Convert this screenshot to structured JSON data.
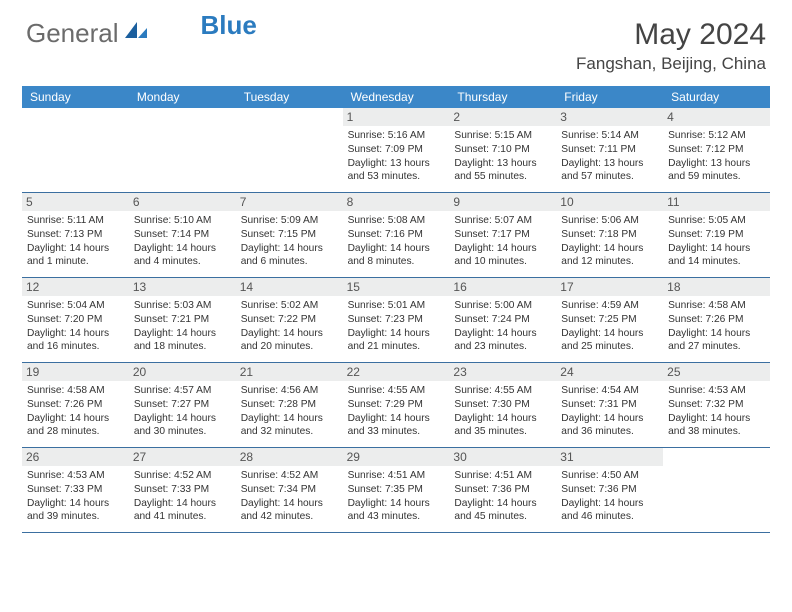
{
  "brand": {
    "part1": "General",
    "part2": "Blue"
  },
  "title": "May 2024",
  "location": "Fangshan, Beijing, China",
  "colors": {
    "header_bg": "#3b87c8",
    "row_border": "#3b6fa0",
    "daynum_bg": "#eceded",
    "logo_gray": "#6b6b6b",
    "logo_blue": "#2b7bbf"
  },
  "days_of_week": [
    "Sunday",
    "Monday",
    "Tuesday",
    "Wednesday",
    "Thursday",
    "Friday",
    "Saturday"
  ],
  "weeks": [
    [
      null,
      null,
      null,
      {
        "n": "1",
        "sr": "5:16 AM",
        "ss": "7:09 PM",
        "dl": "13 hours and 53 minutes."
      },
      {
        "n": "2",
        "sr": "5:15 AM",
        "ss": "7:10 PM",
        "dl": "13 hours and 55 minutes."
      },
      {
        "n": "3",
        "sr": "5:14 AM",
        "ss": "7:11 PM",
        "dl": "13 hours and 57 minutes."
      },
      {
        "n": "4",
        "sr": "5:12 AM",
        "ss": "7:12 PM",
        "dl": "13 hours and 59 minutes."
      }
    ],
    [
      {
        "n": "5",
        "sr": "5:11 AM",
        "ss": "7:13 PM",
        "dl": "14 hours and 1 minute."
      },
      {
        "n": "6",
        "sr": "5:10 AM",
        "ss": "7:14 PM",
        "dl": "14 hours and 4 minutes."
      },
      {
        "n": "7",
        "sr": "5:09 AM",
        "ss": "7:15 PM",
        "dl": "14 hours and 6 minutes."
      },
      {
        "n": "8",
        "sr": "5:08 AM",
        "ss": "7:16 PM",
        "dl": "14 hours and 8 minutes."
      },
      {
        "n": "9",
        "sr": "5:07 AM",
        "ss": "7:17 PM",
        "dl": "14 hours and 10 minutes."
      },
      {
        "n": "10",
        "sr": "5:06 AM",
        "ss": "7:18 PM",
        "dl": "14 hours and 12 minutes."
      },
      {
        "n": "11",
        "sr": "5:05 AM",
        "ss": "7:19 PM",
        "dl": "14 hours and 14 minutes."
      }
    ],
    [
      {
        "n": "12",
        "sr": "5:04 AM",
        "ss": "7:20 PM",
        "dl": "14 hours and 16 minutes."
      },
      {
        "n": "13",
        "sr": "5:03 AM",
        "ss": "7:21 PM",
        "dl": "14 hours and 18 minutes."
      },
      {
        "n": "14",
        "sr": "5:02 AM",
        "ss": "7:22 PM",
        "dl": "14 hours and 20 minutes."
      },
      {
        "n": "15",
        "sr": "5:01 AM",
        "ss": "7:23 PM",
        "dl": "14 hours and 21 minutes."
      },
      {
        "n": "16",
        "sr": "5:00 AM",
        "ss": "7:24 PM",
        "dl": "14 hours and 23 minutes."
      },
      {
        "n": "17",
        "sr": "4:59 AM",
        "ss": "7:25 PM",
        "dl": "14 hours and 25 minutes."
      },
      {
        "n": "18",
        "sr": "4:58 AM",
        "ss": "7:26 PM",
        "dl": "14 hours and 27 minutes."
      }
    ],
    [
      {
        "n": "19",
        "sr": "4:58 AM",
        "ss": "7:26 PM",
        "dl": "14 hours and 28 minutes."
      },
      {
        "n": "20",
        "sr": "4:57 AM",
        "ss": "7:27 PM",
        "dl": "14 hours and 30 minutes."
      },
      {
        "n": "21",
        "sr": "4:56 AM",
        "ss": "7:28 PM",
        "dl": "14 hours and 32 minutes."
      },
      {
        "n": "22",
        "sr": "4:55 AM",
        "ss": "7:29 PM",
        "dl": "14 hours and 33 minutes."
      },
      {
        "n": "23",
        "sr": "4:55 AM",
        "ss": "7:30 PM",
        "dl": "14 hours and 35 minutes."
      },
      {
        "n": "24",
        "sr": "4:54 AM",
        "ss": "7:31 PM",
        "dl": "14 hours and 36 minutes."
      },
      {
        "n": "25",
        "sr": "4:53 AM",
        "ss": "7:32 PM",
        "dl": "14 hours and 38 minutes."
      }
    ],
    [
      {
        "n": "26",
        "sr": "4:53 AM",
        "ss": "7:33 PM",
        "dl": "14 hours and 39 minutes."
      },
      {
        "n": "27",
        "sr": "4:52 AM",
        "ss": "7:33 PM",
        "dl": "14 hours and 41 minutes."
      },
      {
        "n": "28",
        "sr": "4:52 AM",
        "ss": "7:34 PM",
        "dl": "14 hours and 42 minutes."
      },
      {
        "n": "29",
        "sr": "4:51 AM",
        "ss": "7:35 PM",
        "dl": "14 hours and 43 minutes."
      },
      {
        "n": "30",
        "sr": "4:51 AM",
        "ss": "7:36 PM",
        "dl": "14 hours and 45 minutes."
      },
      {
        "n": "31",
        "sr": "4:50 AM",
        "ss": "7:36 PM",
        "dl": "14 hours and 46 minutes."
      },
      null
    ]
  ],
  "labels": {
    "sunrise": "Sunrise:",
    "sunset": "Sunset:",
    "daylight": "Daylight:"
  }
}
